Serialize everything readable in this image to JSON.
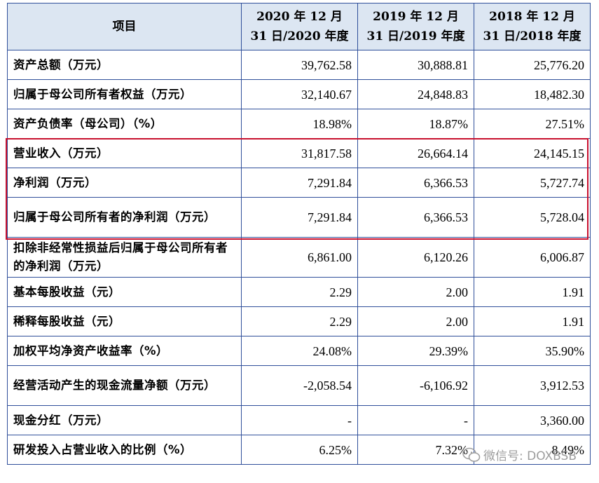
{
  "headers": [
    "项目",
    "2020 年 12 月 31 日/2020 年度",
    "2019 年 12 月 31 日/2019 年度",
    "2018 年 12 月 31 日/2018 年度"
  ],
  "rows": [
    {
      "label": "资产总额（万元）",
      "v2020": "39,762.58",
      "v2019": "30,888.81",
      "v2018": "25,776.20",
      "tall": false
    },
    {
      "label": "归属于母公司所有者权益（万元）",
      "v2020": "32,140.67",
      "v2019": "24,848.83",
      "v2018": "18,482.30",
      "tall": false
    },
    {
      "label": "资产负债率（母公司）（%）",
      "v2020": "18.98%",
      "v2019": "18.87%",
      "v2018": "27.51%",
      "tall": false
    },
    {
      "label": "营业收入（万元）",
      "v2020": "31,817.58",
      "v2019": "26,664.14",
      "v2018": "24,145.15",
      "tall": false
    },
    {
      "label": "净利润（万元）",
      "v2020": "7,291.84",
      "v2019": "6,366.53",
      "v2018": "5,727.74",
      "tall": false
    },
    {
      "label": "归属于母公司所有者的净利润（万元）",
      "v2020": "7,291.84",
      "v2019": "6,366.53",
      "v2018": "5,728.04",
      "tall": true
    },
    {
      "label": "扣除非经常性损益后归属于母公司所有者的净利润（万元）",
      "v2020": "6,861.00",
      "v2019": "6,120.26",
      "v2018": "6,006.87",
      "tall": true
    },
    {
      "label": "基本每股收益（元）",
      "v2020": "2.29",
      "v2019": "2.00",
      "v2018": "1.91",
      "tall": false
    },
    {
      "label": "稀释每股收益（元）",
      "v2020": "2.29",
      "v2019": "2.00",
      "v2018": "1.91",
      "tall": false
    },
    {
      "label": "加权平均净资产收益率（%）",
      "v2020": "24.08%",
      "v2019": "29.39%",
      "v2018": "35.90%",
      "tall": false
    },
    {
      "label": "经营活动产生的现金流量净额（万元）",
      "v2020": "-2,058.54",
      "v2019": "-6,106.92",
      "v2018": "3,912.53",
      "tall": true
    },
    {
      "label": "现金分红（万元）",
      "v2020": "-",
      "v2019": "-",
      "v2018": "3,360.00",
      "tall": false
    },
    {
      "label": "研发投入占营业收入的比例（%）",
      "v2020": "6.25%",
      "v2019": "7.32%",
      "v2018": "8.49%",
      "tall": false
    }
  ],
  "watermark": {
    "text": "微信号: DOXBSB",
    "icon": "wechat-icon"
  },
  "highlight_color": "#c8102e"
}
